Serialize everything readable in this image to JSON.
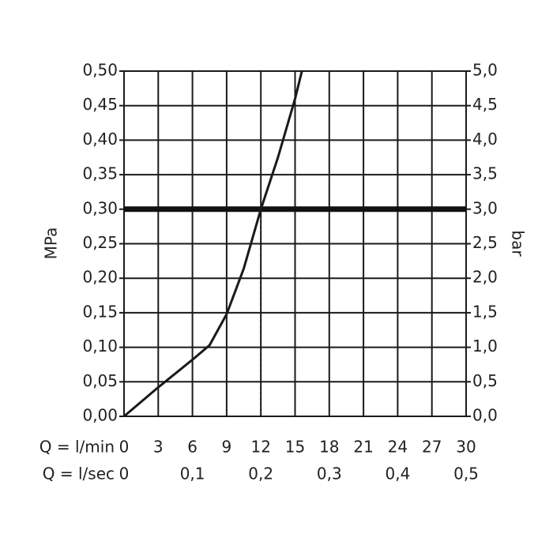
{
  "chart_data": {
    "type": "line",
    "x": [
      0,
      3,
      6,
      7.5,
      9,
      10.5,
      12,
      13.5,
      15,
      15.6
    ],
    "values": [
      0,
      0.042,
      0.082,
      0.103,
      0.148,
      0.214,
      0.3,
      0.375,
      0.46,
      0.5
    ],
    "color": "#1a1a1a",
    "hline": 0.3,
    "vline": 12,
    "xlim": [
      0,
      30
    ],
    "xticks": [
      0,
      3,
      6,
      9,
      12,
      15,
      18,
      21,
      24,
      27,
      30
    ],
    "xlabel": "Q = l/min",
    "x2lim": [
      0,
      0.5
    ],
    "x2ticks": [
      0,
      {
        "value": 0.1,
        "label": "0,1"
      },
      {
        "value": 0.2,
        "label": "0,2"
      },
      {
        "value": 0.3,
        "label": "0,3"
      },
      {
        "value": 0.4,
        "label": "0,4"
      },
      {
        "value": 0.5,
        "label": "0,5"
      }
    ],
    "x2label": "Q = l/sec",
    "ylim": [
      0,
      0.5
    ],
    "yticks": [
      {
        "value": 0,
        "label": "0,00"
      },
      {
        "value": 0.05,
        "label": "0,05"
      },
      {
        "value": 0.1,
        "label": "0,10"
      },
      {
        "value": 0.15,
        "label": "0,15"
      },
      {
        "value": 0.2,
        "label": "0,20"
      },
      {
        "value": 0.25,
        "label": "0,25"
      },
      {
        "value": 0.3,
        "label": "0,30"
      },
      {
        "value": 0.35,
        "label": "0,35"
      },
      {
        "value": 0.4,
        "label": "0,40"
      },
      {
        "value": 0.45,
        "label": "0,45"
      },
      {
        "value": 0.5,
        "label": "0,50"
      }
    ],
    "ylabel": "MPa",
    "y2lim": [
      0,
      5
    ],
    "y2ticks": [
      {
        "value": 0,
        "label": "0,0"
      },
      {
        "value": 0.5,
        "label": "0,5"
      },
      {
        "value": 1,
        "label": "1,0"
      },
      {
        "value": 1.5,
        "label": "1,5"
      },
      {
        "value": 2,
        "label": "2,0"
      },
      {
        "value": 2.5,
        "label": "2,5"
      },
      {
        "value": 3,
        "label": "3,0"
      },
      {
        "value": 3.5,
        "label": "3,5"
      },
      {
        "value": 4,
        "label": "4,0"
      },
      {
        "value": 4.5,
        "label": "4,5"
      },
      {
        "value": 5,
        "label": "5,0"
      }
    ],
    "y2label": "bar",
    "grid": true
  }
}
